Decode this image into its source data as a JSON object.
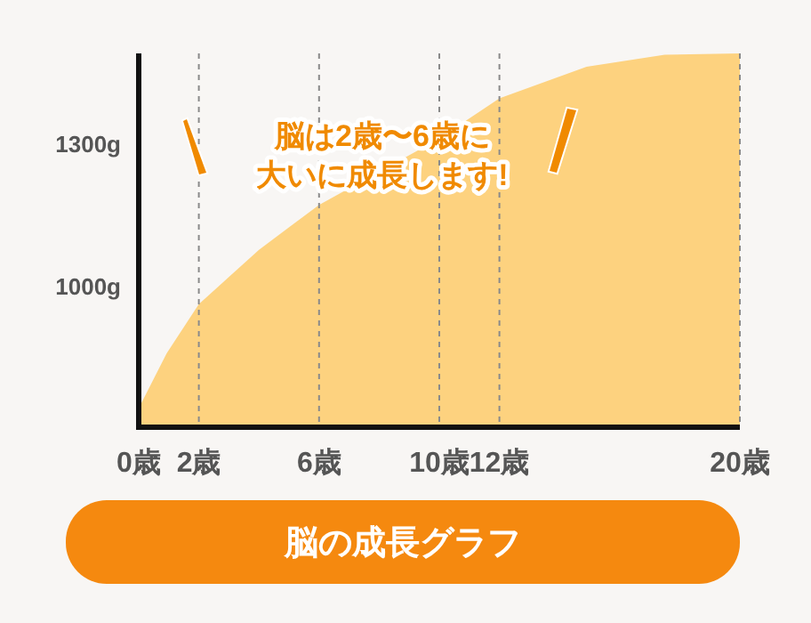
{
  "chart_data": {
    "type": "area",
    "title": "脳の成長グラフ",
    "x": [
      0,
      0.93,
      2,
      4,
      6,
      10,
      12,
      14.9,
      17.5,
      20
    ],
    "series": [
      {
        "color": "#fdd27f",
        "values": [
          740,
          856,
          960,
          1075,
          1170,
          1310,
          1395,
          1462,
          1487,
          1490
        ]
      }
    ],
    "xlim": [
      0,
      20
    ],
    "ylim": [
      700,
      1490
    ],
    "xticks": [
      {
        "value": 0,
        "label": "0歳"
      },
      {
        "value": 2,
        "label": "2歳"
      },
      {
        "value": 6,
        "label": "6歳"
      },
      {
        "value": 10,
        "label": "10歳"
      },
      {
        "value": 12,
        "label": "12歳"
      },
      {
        "value": 20,
        "label": "20歳"
      }
    ],
    "yticks": [
      {
        "value": 1000,
        "label": "1000g"
      },
      {
        "value": 1300,
        "label": "1300g"
      }
    ],
    "grid": "x",
    "annotations": [
      "脳は2歳〜6歳に大いに成長します!"
    ]
  }
}
